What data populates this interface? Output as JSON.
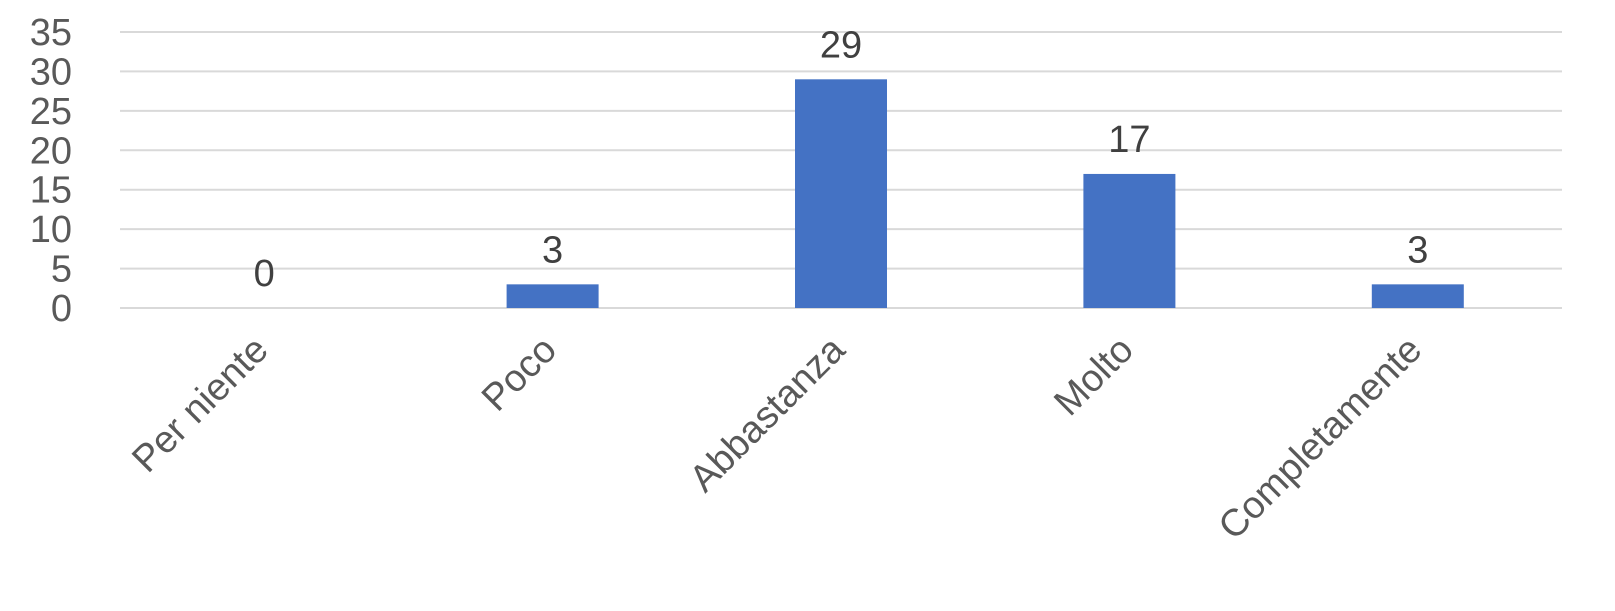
{
  "chart_data": {
    "type": "bar",
    "categories": [
      "Per niente",
      "Poco",
      "Abbastanza",
      "Molto",
      "Completamente"
    ],
    "values": [
      0,
      3,
      29,
      17,
      3
    ],
    "data_labels": [
      "0",
      "3",
      "29",
      "17",
      "3"
    ],
    "title": "",
    "xlabel": "",
    "ylabel": "",
    "ylim": [
      0,
      35
    ],
    "yticks": [
      "0",
      "5",
      "10",
      "15",
      "20",
      "25",
      "30",
      "35"
    ],
    "grid": true,
    "legend": "none",
    "bar_color": "#4472C4"
  }
}
